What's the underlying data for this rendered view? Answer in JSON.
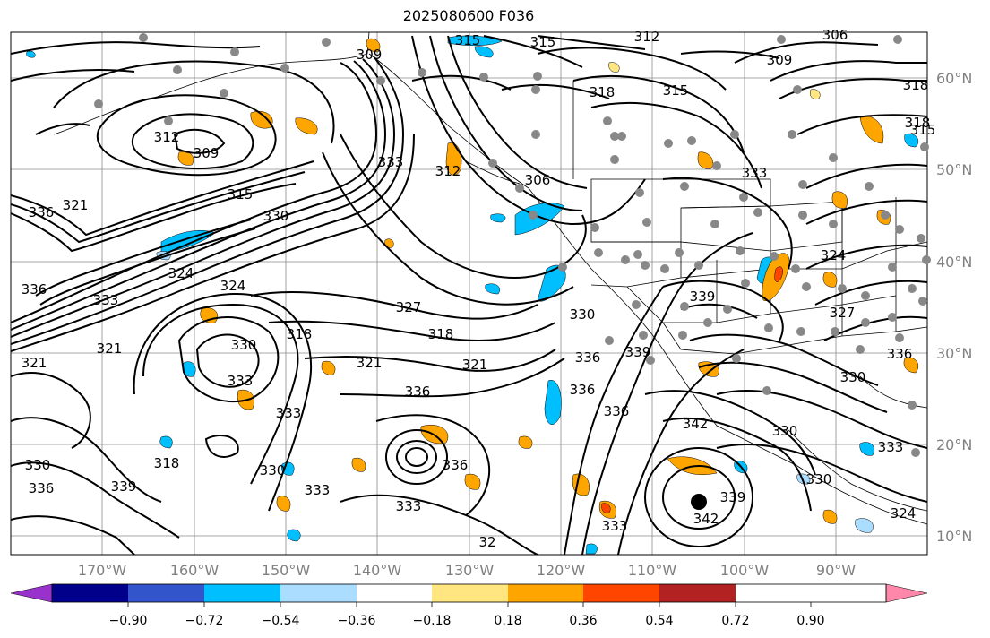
{
  "title": "2025080600 F036",
  "map": {
    "lon_ticks": [
      "170°W",
      "160°W",
      "150°W",
      "140°W",
      "130°W",
      "120°W",
      "110°W",
      "100°W",
      "90°W"
    ],
    "lat_ticks": [
      "60°N",
      "50°N",
      "40°N",
      "30°N",
      "20°N",
      "10°N"
    ],
    "contour_labels": [
      {
        "text": "315"
      },
      {
        "text": "315"
      },
      {
        "text": "312"
      },
      {
        "text": "309"
      },
      {
        "text": "309"
      },
      {
        "text": "306"
      },
      {
        "text": "318"
      },
      {
        "text": "315"
      },
      {
        "text": "318"
      },
      {
        "text": "312"
      },
      {
        "text": "309"
      },
      {
        "text": "333"
      },
      {
        "text": "312"
      },
      {
        "text": "306"
      },
      {
        "text": "315"
      },
      {
        "text": "336"
      },
      {
        "text": "321"
      },
      {
        "text": "330"
      },
      {
        "text": "333"
      },
      {
        "text": "336"
      },
      {
        "text": "324"
      },
      {
        "text": "333"
      },
      {
        "text": "324"
      },
      {
        "text": "327"
      },
      {
        "text": "318"
      },
      {
        "text": "318"
      },
      {
        "text": "330"
      },
      {
        "text": "339"
      },
      {
        "text": "321"
      },
      {
        "text": "321"
      },
      {
        "text": "330"
      },
      {
        "text": "321"
      },
      {
        "text": "321"
      },
      {
        "text": "339"
      },
      {
        "text": "336"
      },
      {
        "text": "336"
      },
      {
        "text": "342"
      },
      {
        "text": "336"
      },
      {
        "text": "333"
      },
      {
        "text": "333"
      },
      {
        "text": "336"
      },
      {
        "text": "330"
      },
      {
        "text": "330"
      },
      {
        "text": "333"
      },
      {
        "text": "318"
      },
      {
        "text": "330"
      },
      {
        "text": "339"
      },
      {
        "text": "336"
      },
      {
        "text": "330"
      },
      {
        "text": "333"
      },
      {
        "text": "336"
      },
      {
        "text": "333"
      },
      {
        "text": "333"
      },
      {
        "text": "324"
      },
      {
        "text": "342"
      },
      {
        "text": "339"
      },
      {
        "text": "330"
      },
      {
        "text": "327"
      },
      {
        "text": "324"
      },
      {
        "text": "318"
      },
      {
        "text": "336"
      },
      {
        "text": "315"
      },
      {
        "text": "32"
      }
    ]
  },
  "colorbar": {
    "colors": [
      "#9932cc",
      "#00008b",
      "#3355cc",
      "#00bfff",
      "#aaddff",
      "#ffffff",
      "#ffe680",
      "#ffa500",
      "#ff4500",
      "#b22222",
      "#ff88aa"
    ],
    "tick_labels": [
      "−0.90",
      "−0.72",
      "−0.54",
      "−0.36",
      "−0.18",
      "0.18",
      "0.36",
      "0.54",
      "0.72",
      "0.90"
    ]
  }
}
